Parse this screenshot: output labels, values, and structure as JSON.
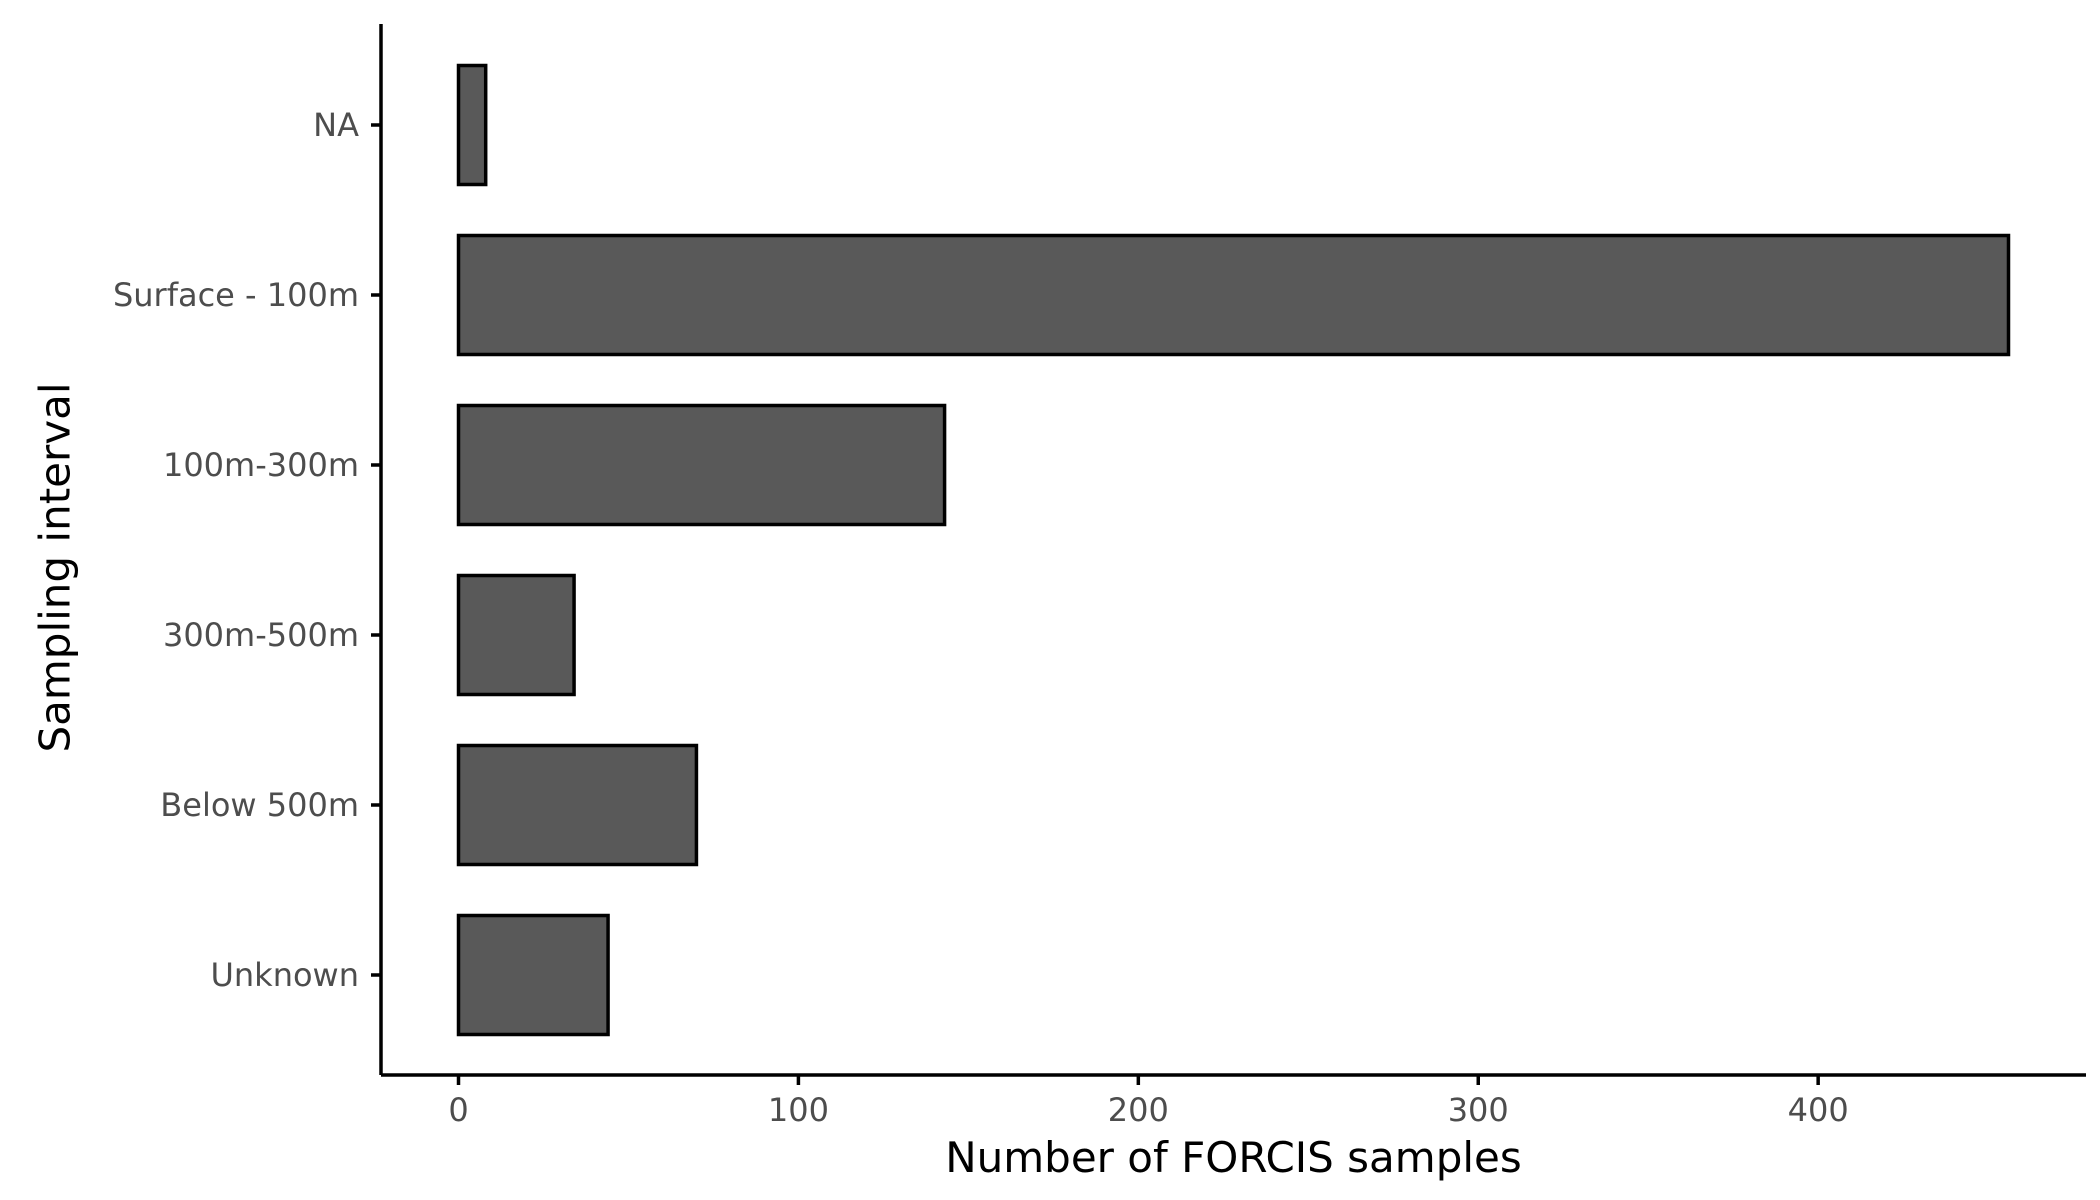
{
  "chart_data": {
    "type": "bar",
    "orientation": "horizontal",
    "categories": [
      "NA",
      "Surface - 100m",
      "100m-300m",
      "300m-500m",
      "Below 500m",
      "Unknown"
    ],
    "values": [
      8,
      456,
      143,
      34,
      70,
      44
    ],
    "xlabel": "Number of FORCIS samples",
    "ylabel": "Sampling interval",
    "xlim": [
      -22.8,
      478.8
    ],
    "xticks": [
      0,
      100,
      200,
      300,
      400
    ],
    "bar_fill": "#595959",
    "bar_edge": "#000000",
    "grid": false,
    "legend": "none"
  }
}
